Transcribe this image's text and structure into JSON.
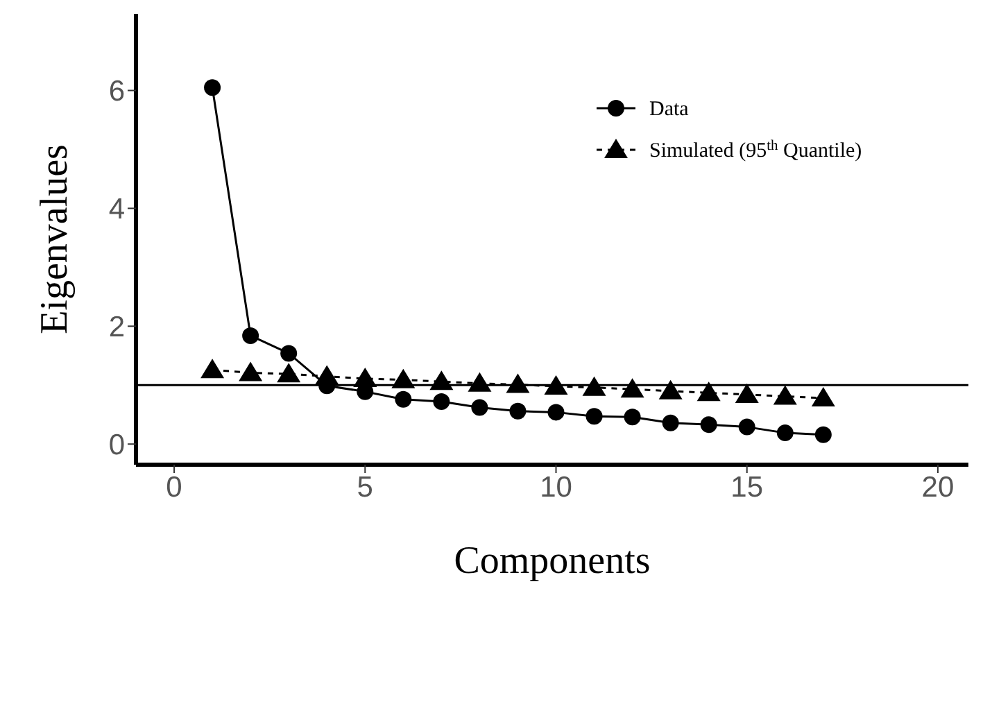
{
  "chart_data": {
    "type": "line",
    "xlabel": "Components",
    "ylabel": "Eigenvalues",
    "x": [
      1,
      2,
      3,
      4,
      5,
      6,
      7,
      8,
      9,
      10,
      11,
      12,
      13,
      14,
      15,
      16,
      17
    ],
    "series": [
      {
        "name": "Data",
        "color": "#000000",
        "marker": "circle",
        "line_style": "solid",
        "values": [
          6.05,
          1.84,
          1.54,
          0.99,
          0.89,
          0.76,
          0.72,
          0.62,
          0.56,
          0.54,
          0.47,
          0.46,
          0.36,
          0.33,
          0.29,
          0.19,
          0.16
        ]
      },
      {
        "name": "Simulated (95$^{th}$ Quantile)",
        "color": "#000000",
        "marker": "triangle",
        "line_style": "dashed",
        "values": [
          1.26,
          1.21,
          1.19,
          1.15,
          1.11,
          1.09,
          1.06,
          1.03,
          1.01,
          0.98,
          0.96,
          0.93,
          0.9,
          0.87,
          0.84,
          0.81,
          0.78
        ]
      }
    ],
    "xlim": [
      -1,
      20.8
    ],
    "xticks": [
      0,
      5,
      10,
      15,
      20
    ],
    "ylim": [
      -0.35,
      7.3
    ],
    "yticks": [
      0,
      2,
      4,
      6
    ],
    "ref_lines": [
      {
        "axis": "y",
        "value": 1,
        "color": "#000000"
      }
    ],
    "grid": false,
    "legend": "top right"
  }
}
